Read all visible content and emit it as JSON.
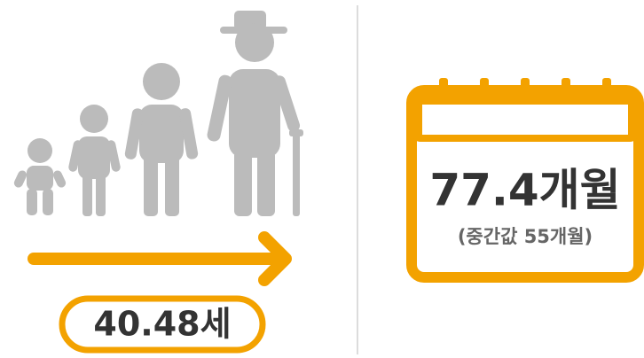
{
  "left": {
    "age": "40.48세"
  },
  "right": {
    "duration": "77.4개월",
    "median": "(중간값 55개월)"
  }
}
